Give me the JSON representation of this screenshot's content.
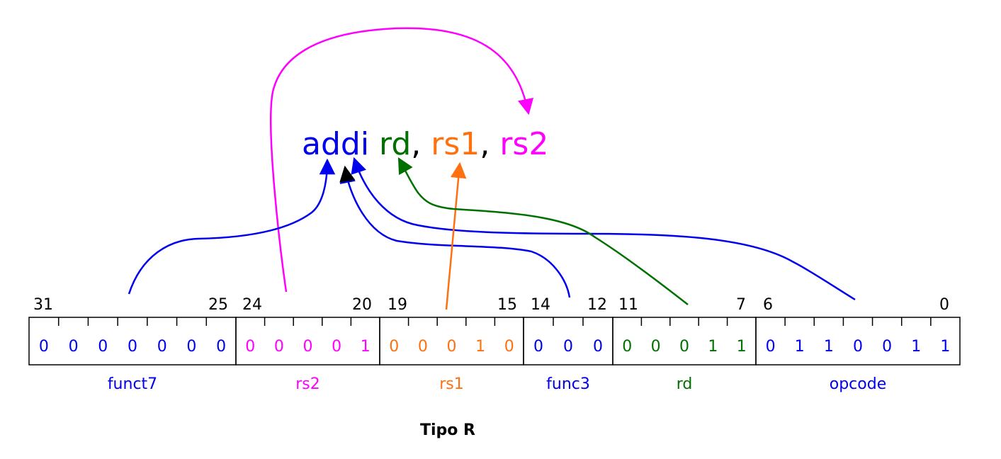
{
  "instruction": {
    "mnemonic": "addi",
    "rd": "rd",
    "comma1": ",",
    "rs1": "rs1",
    "comma2": ",",
    "rs2": "rs2"
  },
  "colors": {
    "funct7": "#0000ee",
    "rs2": "#ff00ff",
    "rs1": "#ff7010",
    "func3": "#0000ee",
    "rd": "#007000",
    "opcode": "#0000ee",
    "black": "#000000"
  },
  "bit_indices": {
    "b31": "31",
    "b25": "25",
    "b24": "24",
    "b20": "20",
    "b19": "19",
    "b15": "15",
    "b14": "14",
    "b12": "12",
    "b11": "11",
    "b7": "7",
    "b6": "6",
    "b0": "0"
  },
  "fields": {
    "funct7": {
      "label": "funct7",
      "bits": [
        "0",
        "0",
        "0",
        "0",
        "0",
        "0",
        "0"
      ]
    },
    "rs2": {
      "label": "rs2",
      "bits": [
        "0",
        "0",
        "0",
        "0",
        "1"
      ]
    },
    "rs1": {
      "label": "rs1",
      "bits": [
        "0",
        "0",
        "0",
        "1",
        "0"
      ]
    },
    "func3": {
      "label": "func3",
      "bits": [
        "0",
        "0",
        "0"
      ]
    },
    "rd": {
      "label": "rd",
      "bits": [
        "0",
        "0",
        "0",
        "1",
        "1"
      ]
    },
    "opcode": {
      "label": "opcode",
      "bits": [
        "0",
        "1",
        "1",
        "0",
        "0",
        "1",
        "1"
      ]
    }
  },
  "caption": "Tipo R"
}
